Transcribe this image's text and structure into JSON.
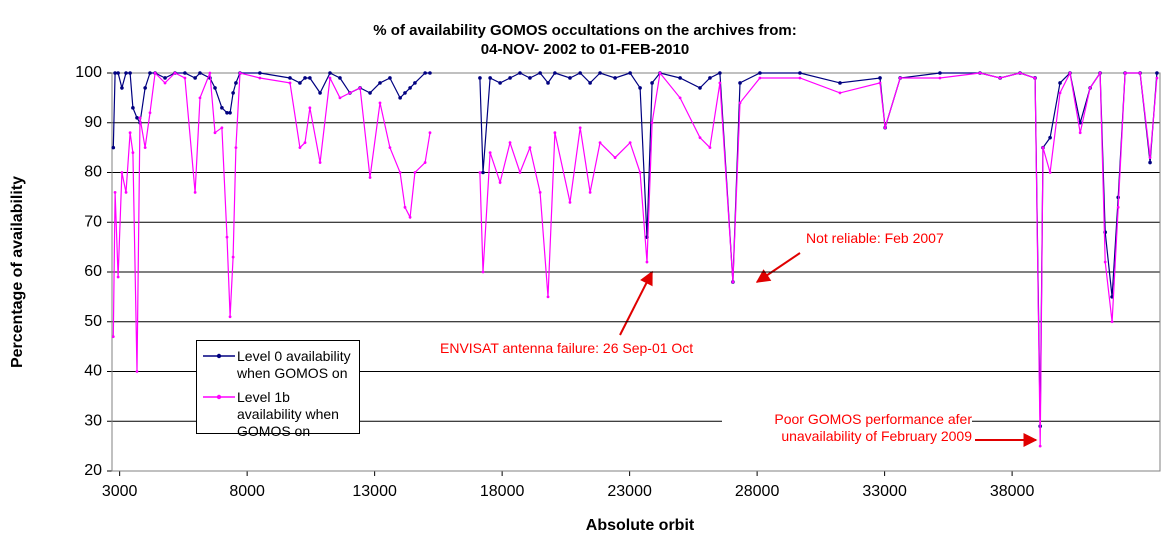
{
  "chart_data": {
    "type": "line",
    "title": "% of availability GOMOS occultations on the archives from:",
    "subtitle": "04-NOV- 2002 to 01-FEB-2010",
    "x_label": "Absolute orbit",
    "y_label": "Percentage of availability",
    "xlim": [
      2700,
      43800
    ],
    "xticks": [
      3000,
      8000,
      13000,
      18000,
      23000,
      28000,
      33000,
      38000
    ],
    "ylim": [
      20,
      100
    ],
    "yticks": [
      20,
      30,
      40,
      50,
      60,
      70,
      80,
      90,
      100
    ],
    "grid": true,
    "legend": "lower left",
    "annotations": [
      "Not reliable: Feb 2007",
      "ENVISAT antenna failure: 26 Sep-01 Oct",
      "Poor GOMOS performance afer unavailability of February 2009"
    ],
    "x": [
      2750,
      2820,
      2940,
      3090,
      3250,
      3410,
      3520,
      3680,
      3800,
      4000,
      4190,
      4390,
      4780,
      5170,
      5560,
      5960,
      6150,
      6540,
      6740,
      7010,
      7210,
      7330,
      7450,
      7560,
      7720,
      8500,
      9680,
      10070,
      10270,
      10460,
      10860,
      11250,
      11640,
      12030,
      12430,
      12820,
      13210,
      13600,
      14000,
      14190,
      14390,
      14580,
      14980,
      15170,
      null,
      17130,
      17250,
      17530,
      17920,
      18310,
      18700,
      19090,
      19490,
      19800,
      20070,
      20660,
      21060,
      21450,
      21840,
      22430,
      23020,
      23410,
      23680,
      23880,
      24190,
      24980,
      25760,
      26150,
      26540,
      27050,
      27330,
      28110,
      29680,
      31250,
      32820,
      33020,
      33610,
      35170,
      36740,
      37530,
      38310,
      38900,
      39100,
      39210,
      39490,
      39880,
      40270,
      40670,
      41060,
      41450,
      41650,
      41920,
      42160,
      42430,
      43020,
      43410,
      43680
    ],
    "series": [
      {
        "name": "Level 0 availability when GOMOS on",
        "color": "#000080",
        "values": [
          85,
          100,
          100,
          97,
          100,
          100,
          93,
          91,
          90,
          97,
          100,
          100,
          99,
          100,
          100,
          99,
          100,
          99,
          97,
          93,
          92,
          92,
          96,
          98,
          100,
          100,
          99,
          98,
          99,
          99,
          96,
          100,
          99,
          96,
          97,
          96,
          98,
          99,
          95,
          96,
          97,
          98,
          100,
          100,
          null,
          99,
          80,
          99,
          98,
          99,
          100,
          99,
          100,
          98,
          100,
          99,
          100,
          98,
          100,
          99,
          100,
          97,
          67,
          98,
          100,
          99,
          97,
          99,
          100,
          58,
          98,
          100,
          100,
          98,
          99,
          89,
          99,
          100,
          100,
          99,
          100,
          99,
          29,
          85,
          87,
          98,
          100,
          90,
          97,
          100,
          68,
          55,
          75,
          100,
          100,
          82,
          100
        ]
      },
      {
        "name": "Level 1b availability when GOMOS on",
        "color": "#FF00FF",
        "values": [
          47,
          76,
          59,
          80,
          76,
          88,
          84,
          40,
          91,
          85,
          92,
          100,
          98,
          100,
          99,
          76,
          95,
          100,
          88,
          89,
          67,
          51,
          63,
          85,
          100,
          99,
          98,
          85,
          86,
          93,
          82,
          99,
          95,
          96,
          97,
          79,
          94,
          85,
          80,
          73,
          71,
          80,
          82,
          88,
          null,
          80,
          60,
          84,
          78,
          86,
          80,
          85,
          76,
          55,
          88,
          74,
          89,
          76,
          86,
          83,
          86,
          80,
          62,
          90,
          100,
          95,
          87,
          85,
          98,
          58,
          94,
          99,
          99,
          96,
          98,
          89,
          99,
          99,
          100,
          99,
          100,
          99,
          25,
          85,
          80,
          96,
          100,
          88,
          97,
          100,
          62,
          50,
          73,
          100,
          100,
          83,
          99
        ]
      }
    ]
  }
}
